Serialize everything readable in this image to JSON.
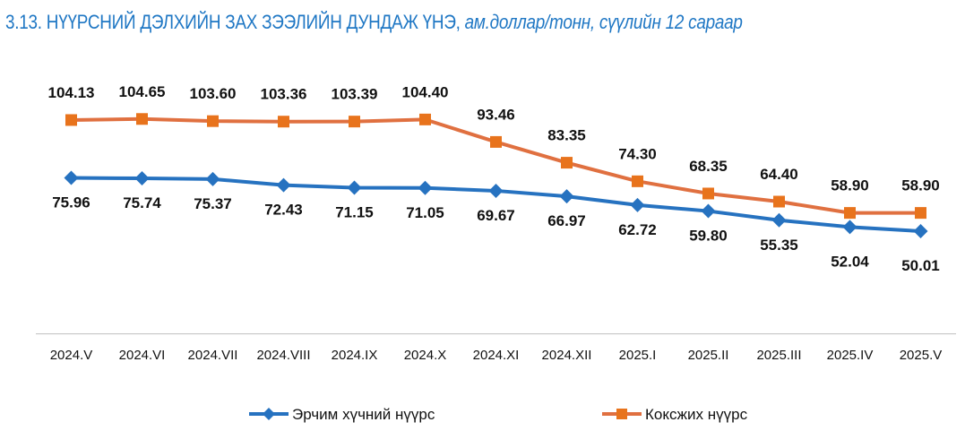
{
  "chart_data": {
    "type": "line",
    "title": "3.13. НҮҮРСНИЙ ДЭЛХИЙН ЗАХ ЗЭЭЛИЙН ДУНДАЖ ҮНЭ,",
    "subtitle": "ам.доллар/тонн, сүүлийн 12 сараар",
    "categories": [
      "2024.V",
      "2024.VI",
      "2024.VII",
      "2024.VIII",
      "2024.IX",
      "2024.X",
      "2024.XI",
      "2024.XII",
      "2025.I",
      "2025.II",
      "2025.III",
      "2025.IV",
      "2025.V"
    ],
    "series": [
      {
        "name": "Эрчим хүчний нүүрс",
        "color": "#2672c0",
        "marker": "diamond",
        "values": [
          75.96,
          75.74,
          75.37,
          72.43,
          71.15,
          71.05,
          69.67,
          66.97,
          62.72,
          59.8,
          55.35,
          52.04,
          50.01
        ],
        "labels": [
          "75.96",
          "75.74",
          "75.37",
          "72.43",
          "71.15",
          "71.05",
          "69.67",
          "66.97",
          "62.72",
          "59.80",
          "55.35",
          "52.04",
          "50.01"
        ]
      },
      {
        "name": "Коксжих нүүрс",
        "color": "#e07040",
        "marker_color": "#e8731c",
        "marker": "square",
        "values": [
          104.13,
          104.65,
          103.6,
          103.36,
          103.39,
          104.4,
          93.46,
          83.35,
          74.3,
          68.35,
          64.4,
          58.9,
          58.9
        ],
        "labels": [
          "104.13",
          "104.65",
          "103.60",
          "103.36",
          "103.39",
          "104.40",
          "93.46",
          "83.35",
          "74.30",
          "68.35",
          "64.40",
          "58.90",
          "58.90"
        ]
      }
    ],
    "ylim": [
      0,
      120
    ],
    "grid": false,
    "legend": "bottom"
  }
}
